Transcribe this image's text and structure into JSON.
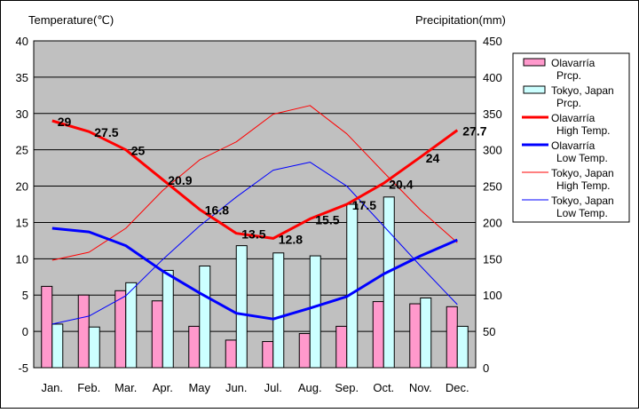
{
  "chart_data": {
    "type": "bar+line",
    "categories": [
      "Jan.",
      "Feb.",
      "Mar.",
      "Apr.",
      "May",
      "Jun.",
      "Jul.",
      "Aug.",
      "Sep.",
      "Oct.",
      "Nov.",
      "Dec."
    ],
    "left_axis": {
      "title": "Temperature(℃)",
      "min": -5,
      "max": 40,
      "step": 5
    },
    "right_axis": {
      "title": "Precipitation(mm)",
      "min": 0,
      "max": 450,
      "step": 50
    },
    "bar_series": [
      {
        "name": "Olavarría Prcp.",
        "legend": [
          "Olavarría",
          "Prcp."
        ],
        "color": "#ff99cc",
        "values": [
          112,
          100,
          106,
          92,
          57,
          38,
          36,
          47,
          57,
          91,
          88,
          84
        ]
      },
      {
        "name": "Tokyo, Japan Prcp.",
        "legend": [
          "Tokyo, Japan",
          "Prcp."
        ],
        "color": "#ccffff",
        "values": [
          60,
          56,
          117,
          134,
          140,
          168,
          158,
          154,
          225,
          235,
          96,
          57
        ]
      }
    ],
    "line_series": [
      {
        "name": "Olavarría High Temp.",
        "legend": [
          "Olavarría",
          "High Temp."
        ],
        "color": "#ff0000",
        "width": 3,
        "values": [
          29,
          27.5,
          25,
          20.9,
          16.8,
          13.5,
          12.8,
          15.5,
          17.5,
          20.4,
          24,
          27.7
        ],
        "labeled": true
      },
      {
        "name": "Olavarría Low Temp.",
        "legend": [
          "Olavarría",
          "Low Temp."
        ],
        "color": "#0000ff",
        "width": 3,
        "values": [
          14.2,
          13.7,
          11.8,
          8.3,
          5.3,
          2.5,
          1.7,
          3.2,
          4.8,
          7.9,
          10.4,
          12.6
        ],
        "labeled": false
      },
      {
        "name": "Tokyo, Japan High Temp.",
        "legend": [
          "Tokyo, Japan",
          "High Temp."
        ],
        "color": "#ff0000",
        "width": 1,
        "values": [
          9.8,
          10.9,
          14.2,
          19.4,
          23.6,
          26.1,
          29.9,
          31.1,
          27.2,
          21.9,
          16.7,
          12.2
        ],
        "labeled": false
      },
      {
        "name": "Tokyo, Japan Low Temp.",
        "legend": [
          "Tokyo, Japan",
          "Low Temp."
        ],
        "color": "#0000ff",
        "width": 1,
        "values": [
          1.0,
          2.1,
          4.9,
          9.9,
          14.5,
          18.5,
          22.2,
          23.3,
          20.0,
          14.5,
          9.0,
          3.7
        ],
        "labeled": false
      }
    ],
    "high_labels": [
      "29",
      "27.5",
      "25",
      "20.9",
      "16.8",
      "13.5",
      "12.8",
      "15.5",
      "17.5",
      "20.4",
      "24",
      "27.7"
    ],
    "plot_background": "#c0c0c0",
    "grid": true,
    "legend_position": "right"
  }
}
